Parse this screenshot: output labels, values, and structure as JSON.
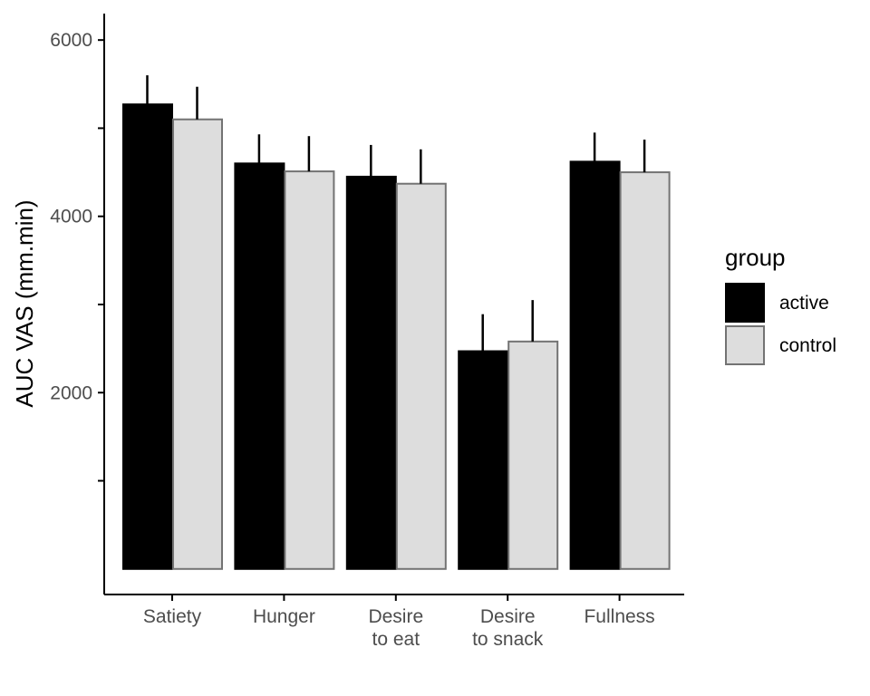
{
  "chart_data": {
    "type": "bar",
    "categories": [
      [
        "Satiety"
      ],
      [
        "Hunger"
      ],
      [
        "Desire",
        "to eat"
      ],
      [
        "Desire",
        "to snack"
      ],
      [
        "Fullness"
      ]
    ],
    "series": [
      {
        "name": "active",
        "values": [
          5270,
          4600,
          4450,
          2470,
          4620
        ],
        "errors": [
          330,
          330,
          360,
          420,
          330
        ],
        "fill": "#000000",
        "stroke": "#000000",
        "errcolor": "#000000"
      },
      {
        "name": "control",
        "values": [
          5100,
          4510,
          4370,
          2580,
          4500
        ],
        "errors": [
          370,
          400,
          390,
          470,
          370
        ],
        "fill": "#dddddd",
        "stroke": "#737373",
        "errcolor": "#000000"
      }
    ],
    "ylabel": "AUC VAS (mm.min)",
    "yticks": [
      2000,
      4000,
      6000
    ],
    "yminor_ticks": [
      1000,
      3000,
      5000
    ],
    "ylim": [
      -290,
      6300
    ],
    "legend": {
      "title": "group",
      "position": "right"
    },
    "grid": false
  }
}
